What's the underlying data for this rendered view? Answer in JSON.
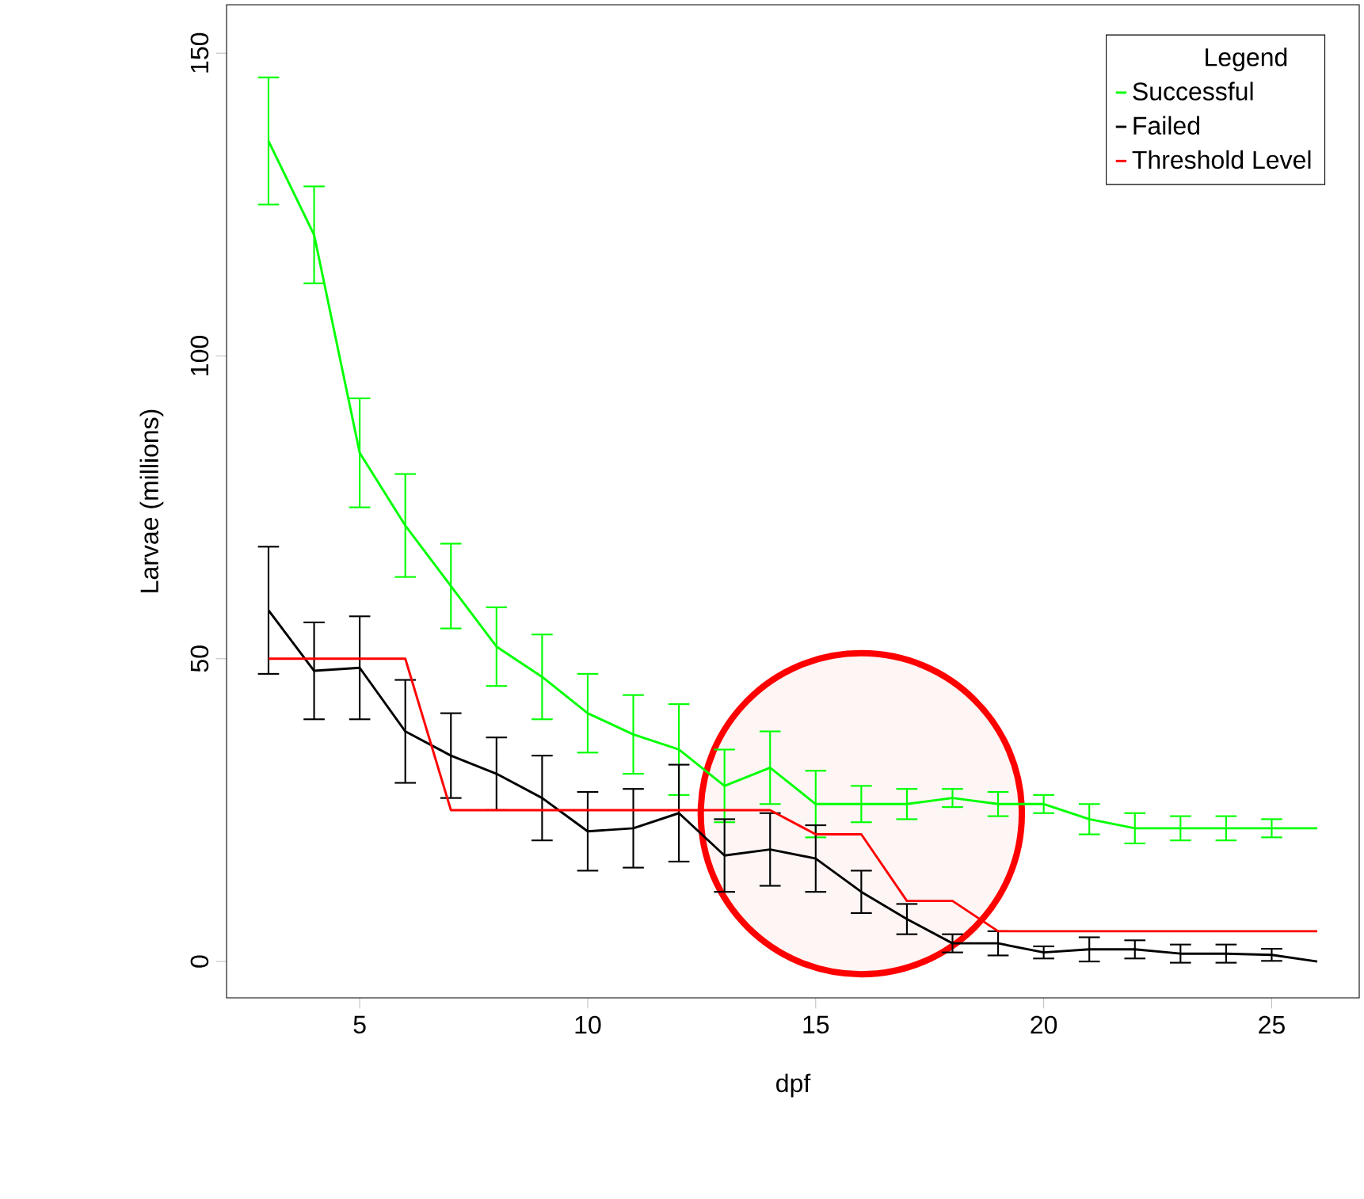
{
  "chart_data": {
    "type": "line",
    "xlabel": "dpf",
    "ylabel": "Larvae (millions)",
    "legend_title": "Legend",
    "legend": "top right",
    "marker": "none",
    "line_style": "solid",
    "x": [
      3,
      4,
      5,
      6,
      7,
      8,
      9,
      10,
      11,
      12,
      13,
      14,
      15,
      16,
      17,
      18,
      19,
      20,
      21,
      22,
      23,
      24,
      25,
      26
    ],
    "xlim": [
      2.08,
      26.92
    ],
    "ylim": [
      -6,
      158
    ],
    "xticks": [
      5,
      10,
      15,
      20,
      25
    ],
    "yticks": [
      0,
      50,
      100,
      150
    ],
    "series": [
      {
        "name": "Successful",
        "color": "#00ff00",
        "values": [
          135.5,
          120,
          84,
          72,
          62,
          52,
          47,
          41,
          37.5,
          35,
          29,
          32,
          26,
          26,
          26,
          27,
          26,
          26,
          23.5,
          22,
          22,
          22,
          22,
          22
        ],
        "errors": [
          10.5,
          8,
          9,
          8.5,
          7,
          6.5,
          7,
          6.5,
          6.5,
          7.5,
          6,
          6,
          5.5,
          3,
          2.5,
          1.5,
          2,
          1.5,
          2.5,
          2.5,
          2,
          2,
          1.5,
          null
        ]
      },
      {
        "name": "Failed",
        "color": "#000000",
        "values": [
          58,
          48,
          48.5,
          38,
          34,
          31,
          27,
          21.5,
          22,
          24.5,
          17.5,
          18.5,
          17,
          11.5,
          7,
          3,
          3,
          1.5,
          2,
          2,
          1.3,
          1.3,
          1.1,
          0
        ],
        "errors": [
          10.5,
          8,
          8.5,
          8.5,
          7,
          6,
          7,
          6.5,
          6.5,
          8,
          6,
          6,
          5.5,
          3.5,
          2.5,
          1.5,
          2,
          1,
          2,
          1.5,
          1.5,
          1.5,
          1,
          null
        ]
      },
      {
        "name": "Threshold Level",
        "color": "#ff0000",
        "values": [
          50,
          50,
          50,
          50,
          25,
          25,
          25,
          25,
          25,
          25,
          25,
          25,
          21,
          21,
          10,
          10,
          5,
          5,
          5,
          5,
          5,
          5,
          5,
          5
        ]
      }
    ]
  }
}
